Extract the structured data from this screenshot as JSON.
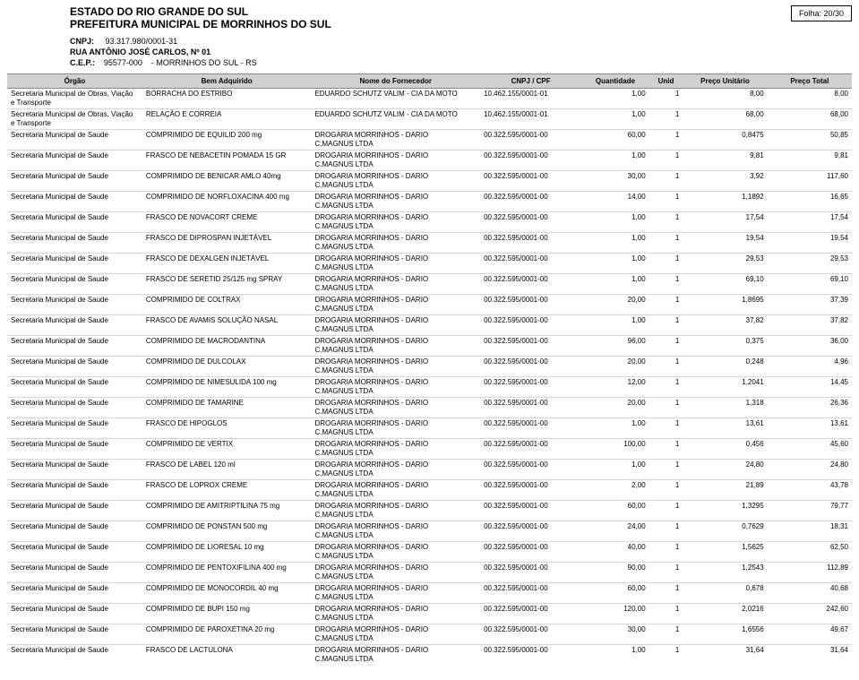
{
  "header": {
    "state": "ESTADO DO RIO GRANDE DO SUL",
    "city": "PREFEITURA MUNICIPAL DE MORRINHOS DO SUL",
    "folha": "Folha: 20/30",
    "cnpj_label": "CNPJ:",
    "cnpj": "93.317.980/0001-31",
    "address": "RUA ANTÔNIO JOSÉ CARLOS, Nº 01",
    "cep_label": "C.E.P.:",
    "cep": "95577-000",
    "cep_city": "- MORRINHOS DO SUL - RS"
  },
  "columns": {
    "orgao": "Órgão",
    "bem": "Bem Adquirido",
    "fornecedor": "Nome do Fornecedor",
    "cnpj": "CNPJ / CPF",
    "qtd": "Quantidade",
    "unid": "Unid",
    "preco_unit": "Preço Unitário",
    "preco_total": "Preço Total"
  },
  "col_widths": {
    "orgao": "16%",
    "bem": "20%",
    "fornecedor": "20%",
    "cnpj": "12%",
    "qtd": "8%",
    "unid": "4%",
    "preco_unit": "10%",
    "preco_total": "10%"
  },
  "rows": [
    {
      "orgao": "Secretaria Municipal de Obras, Viação e Transporte",
      "bem": "BORRACHA DO ESTRIBO",
      "forn": "EDUARDO SCHUTZ VALIM - CIA DA MOTO",
      "forn2": "",
      "cnpj": "10.462.155/0001-01",
      "qtd": "1,00",
      "unid": "1",
      "pu": "8,00",
      "pt": "8,00"
    },
    {
      "orgao": "Secretaria Municipal de Obras, Viação e Transporte",
      "bem": "RELAÇÃO E CORREIA",
      "forn": "EDUARDO SCHUTZ VALIM - CIA DA MOTO",
      "forn2": "",
      "cnpj": "10.462.155/0001-01",
      "qtd": "1,00",
      "unid": "1",
      "pu": "68,00",
      "pt": "68,00"
    },
    {
      "orgao": "Secretaria Municipal de Saude",
      "bem": "COMPRIMIDO DE EQUILID 200 mg",
      "forn": "DROGARIA MORRINHOS - DARIO",
      "forn2": "C.MAGNUS LTDA",
      "cnpj": "00.322.595/0001-00",
      "qtd": "60,00",
      "unid": "1",
      "pu": "0,8475",
      "pt": "50,85"
    },
    {
      "orgao": "Secretaria Municipal de Saude",
      "bem": "FRASCO DE NEBACETIN POMADA 15 GR",
      "forn": "DROGARIA MORRINHOS - DARIO",
      "forn2": "C.MAGNUS LTDA",
      "cnpj": "00.322.595/0001-00",
      "qtd": "1,00",
      "unid": "1",
      "pu": "9,81",
      "pt": "9,81"
    },
    {
      "orgao": "Secretaria Municipal de Saude",
      "bem": "COMPRIMIDO DE BENICAR AMLO 40mg",
      "forn": "DROGARIA MORRINHOS - DARIO",
      "forn2": "C.MAGNUS LTDA",
      "cnpj": "00.322.595/0001-00",
      "qtd": "30,00",
      "unid": "1",
      "pu": "3,92",
      "pt": "117,60"
    },
    {
      "orgao": "Secretaria Municipal de Saude",
      "bem": "COMPRIMIDO DE NORFLOXACINA 400 mg",
      "forn": "DROGARIA MORRINHOS - DARIO",
      "forn2": "C.MAGNUS LTDA",
      "cnpj": "00.322.595/0001-00",
      "qtd": "14,00",
      "unid": "1",
      "pu": "1,1892",
      "pt": "16,65"
    },
    {
      "orgao": "Secretaria Municipal de Saude",
      "bem": "FRASCO DE NOVACORT CREME",
      "forn": "DROGARIA MORRINHOS - DARIO",
      "forn2": "C.MAGNUS LTDA",
      "cnpj": "00.322.595/0001-00",
      "qtd": "1,00",
      "unid": "1",
      "pu": "17,54",
      "pt": "17,54"
    },
    {
      "orgao": "Secretaria Municipal de Saude",
      "bem": "FRASCO DE DIPROSPAN INJETÁVEL",
      "forn": "DROGARIA MORRINHOS - DARIO",
      "forn2": "C.MAGNUS LTDA",
      "cnpj": "00.322.595/0001-00",
      "qtd": "1,00",
      "unid": "1",
      "pu": "19,54",
      "pt": "19,54"
    },
    {
      "orgao": "Secretaria Municipal de Saude",
      "bem": "FRASCO DE DEXALGEN INJETÁVEL",
      "forn": "DROGARIA MORRINHOS - DARIO",
      "forn2": "C.MAGNUS LTDA",
      "cnpj": "00.322.595/0001-00",
      "qtd": "1,00",
      "unid": "1",
      "pu": "29,53",
      "pt": "29,53"
    },
    {
      "orgao": "Secretaria Municipal de Saude",
      "bem": "FRASCO DE SERETID 25/125 mg SPRAY",
      "forn": "DROGARIA MORRINHOS - DARIO",
      "forn2": "C.MAGNUS LTDA",
      "cnpj": "00.322.595/0001-00",
      "qtd": "1,00",
      "unid": "1",
      "pu": "69,10",
      "pt": "69,10"
    },
    {
      "orgao": "Secretaria Municipal de Saude",
      "bem": "COMPRIMIDO DE COLTRAX",
      "forn": "DROGARIA MORRINHOS - DARIO",
      "forn2": "C.MAGNUS LTDA",
      "cnpj": "00.322.595/0001-00",
      "qtd": "20,00",
      "unid": "1",
      "pu": "1,8695",
      "pt": "37,39"
    },
    {
      "orgao": "Secretaria Municipal de Saude",
      "bem": "FRASCO DE AVAMIS SOLUÇÃO NASAL",
      "forn": "DROGARIA MORRINHOS - DARIO",
      "forn2": "C.MAGNUS LTDA",
      "cnpj": "00.322.595/0001-00",
      "qtd": "1,00",
      "unid": "1",
      "pu": "37,82",
      "pt": "37,82"
    },
    {
      "orgao": "Secretaria Municipal de Saude",
      "bem": "COMPRIMIDO DE MACRODANTINA",
      "forn": "DROGARIA MORRINHOS - DARIO",
      "forn2": "C.MAGNUS LTDA",
      "cnpj": "00.322.595/0001-00",
      "qtd": "96,00",
      "unid": "1",
      "pu": "0,375",
      "pt": "36,00"
    },
    {
      "orgao": "Secretaria Municipal de Saude",
      "bem": "COMPRIMIDO DE DULCOLAX",
      "forn": "DROGARIA MORRINHOS - DARIO",
      "forn2": "C.MAGNUS LTDA",
      "cnpj": "00.322.595/0001-00",
      "qtd": "20,00",
      "unid": "1",
      "pu": "0,248",
      "pt": "4,96"
    },
    {
      "orgao": "Secretaria Municipal de Saude",
      "bem": "COMPRIMIDO DE NIMESULIDA 100 mg",
      "forn": "DROGARIA MORRINHOS - DARIO",
      "forn2": "C.MAGNUS LTDA",
      "cnpj": "00.322.595/0001-00",
      "qtd": "12,00",
      "unid": "1",
      "pu": "1,2041",
      "pt": "14,45"
    },
    {
      "orgao": "Secretaria Municipal de Saude",
      "bem": "COMPRIMIDO DE TAMARINE",
      "forn": "DROGARIA MORRINHOS - DARIO",
      "forn2": "C.MAGNUS LTDA",
      "cnpj": "00.322.595/0001-00",
      "qtd": "20,00",
      "unid": "1",
      "pu": "1,318",
      "pt": "26,36"
    },
    {
      "orgao": "Secretaria Municipal de Saude",
      "bem": "FRASCO DE HIPOGLOS",
      "forn": "DROGARIA MORRINHOS - DARIO",
      "forn2": "C.MAGNUS LTDA",
      "cnpj": "00.322.595/0001-00",
      "qtd": "1,00",
      "unid": "1",
      "pu": "13,61",
      "pt": "13,61"
    },
    {
      "orgao": "Secretaria Municipal de Saude",
      "bem": "COMPRIMIDO DE VERTIX",
      "forn": "DROGARIA MORRINHOS - DARIO",
      "forn2": "C.MAGNUS LTDA",
      "cnpj": "00.322.595/0001-00",
      "qtd": "100,00",
      "unid": "1",
      "pu": "0,456",
      "pt": "45,60"
    },
    {
      "orgao": "Secretaria Municipal de Saude",
      "bem": "FRASCO DE LABEL 120 ml",
      "forn": "DROGARIA MORRINHOS - DARIO",
      "forn2": "C.MAGNUS LTDA",
      "cnpj": "00.322.595/0001-00",
      "qtd": "1,00",
      "unid": "1",
      "pu": "24,80",
      "pt": "24,80"
    },
    {
      "orgao": "Secretaria Municipal de Saude",
      "bem": "FRASCO DE LOPROX CREME",
      "forn": "DROGARIA MORRINHOS - DARIO",
      "forn2": "C.MAGNUS LTDA",
      "cnpj": "00.322.595/0001-00",
      "qtd": "2,00",
      "unid": "1",
      "pu": "21,89",
      "pt": "43,78"
    },
    {
      "orgao": "Secretaria Municipal de Saude",
      "bem": "COMPRIMIDO DE AMITRIPTILINA 75 mg",
      "forn": "DROGARIA MORRINHOS - DARIO",
      "forn2": "C.MAGNUS LTDA",
      "cnpj": "00.322.595/0001-00",
      "qtd": "60,00",
      "unid": "1",
      "pu": "1,3295",
      "pt": "79,77"
    },
    {
      "orgao": "Secretaria Municipal de Saude",
      "bem": "COMPRIMIDO DE PONSTAN 500 mg",
      "forn": "DROGARIA MORRINHOS - DARIO",
      "forn2": "C.MAGNUS LTDA",
      "cnpj": "00.322.595/0001-00",
      "qtd": "24,00",
      "unid": "1",
      "pu": "0,7629",
      "pt": "18,31"
    },
    {
      "orgao": "Secretaria Municipal de Saude",
      "bem": "COMPRIMIDO DE LIORESAL 10 mg",
      "forn": "DROGARIA MORRINHOS - DARIO",
      "forn2": "C.MAGNUS LTDA",
      "cnpj": "00.322.595/0001-00",
      "qtd": "40,00",
      "unid": "1",
      "pu": "1,5625",
      "pt": "62,50"
    },
    {
      "orgao": "Secretaria Municipal de Saude",
      "bem": "COMPRIMIDO DE PENTOXIFILINA 400 mg",
      "forn": "DROGARIA MORRINHOS - DARIO",
      "forn2": "C.MAGNUS LTDA",
      "cnpj": "00.322.595/0001-00",
      "qtd": "90,00",
      "unid": "1",
      "pu": "1,2543",
      "pt": "112,89"
    },
    {
      "orgao": "Secretaria Municipal de Saude",
      "bem": "COMPRIMIDO DE MONOCORDIL 40 mg",
      "forn": "DROGARIA MORRINHOS - DARIO",
      "forn2": "C.MAGNUS LTDA",
      "cnpj": "00.322.595/0001-00",
      "qtd": "60,00",
      "unid": "1",
      "pu": "0,678",
      "pt": "40,68"
    },
    {
      "orgao": "Secretaria Municipal de Saude",
      "bem": "COMPRIMIDO DE BUPI 150 mg",
      "forn": "DROGARIA MORRINHOS - DARIO",
      "forn2": "C.MAGNUS LTDA",
      "cnpj": "00.322.595/0001-00",
      "qtd": "120,00",
      "unid": "1",
      "pu": "2,0216",
      "pt": "242,60"
    },
    {
      "orgao": "Secretaria Municipal de Saude",
      "bem": "COMPRIMIDO DE PAROXETINA 20 mg",
      "forn": "DROGARIA MORRINHOS - DARIO",
      "forn2": "C.MAGNUS LTDA",
      "cnpj": "00.322.595/0001-00",
      "qtd": "30,00",
      "unid": "1",
      "pu": "1,6556",
      "pt": "49,67"
    },
    {
      "orgao": "Secretaria Municipal de Saude",
      "bem": "FRASCO DE LACTULONA",
      "forn": "DROGARIA MORRINHOS - DARIO",
      "forn2": "C.MAGNUS LTDA",
      "cnpj": "00.322.595/0001-00",
      "qtd": "1,00",
      "unid": "1",
      "pu": "31,64",
      "pt": "31,64"
    }
  ],
  "style": {
    "header_bg": "#d0d0d0",
    "row_border": "#d8d8d8",
    "font_size_body": 8,
    "font_size_header": 12
  }
}
